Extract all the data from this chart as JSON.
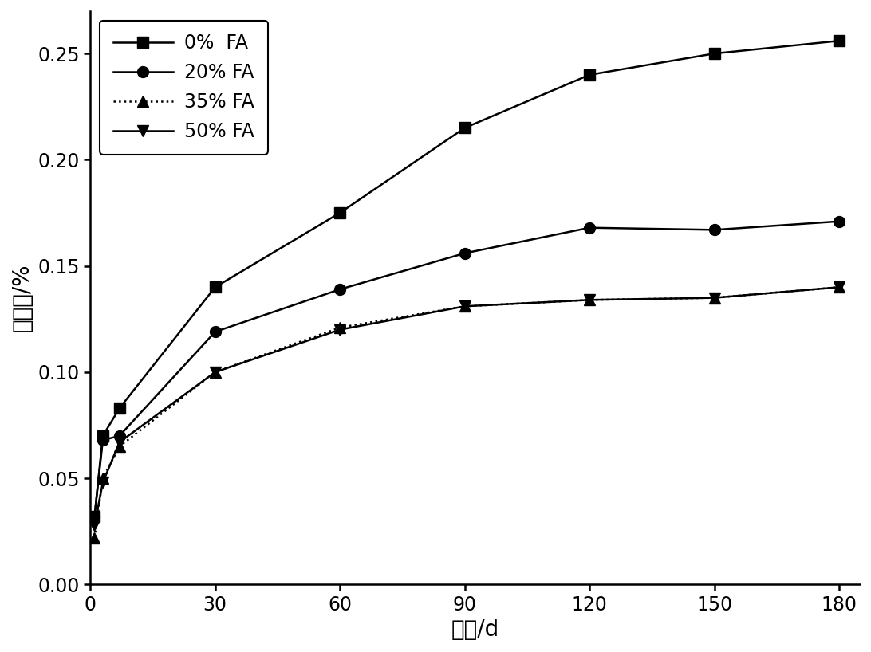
{
  "series": [
    {
      "label": "0%  FA",
      "x": [
        1,
        3,
        7,
        30,
        60,
        90,
        120,
        150,
        180
      ],
      "y": [
        0.032,
        0.07,
        0.083,
        0.14,
        0.175,
        0.215,
        0.24,
        0.25,
        0.256
      ],
      "marker": "s",
      "linestyle": "-",
      "color": "#000000"
    },
    {
      "label": "20% FA",
      "x": [
        1,
        3,
        7,
        30,
        60,
        90,
        120,
        150,
        180
      ],
      "y": [
        0.032,
        0.068,
        0.07,
        0.119,
        0.139,
        0.156,
        0.168,
        0.167,
        0.171
      ],
      "marker": "o",
      "linestyle": "-",
      "color": "#000000"
    },
    {
      "label": "35% FA",
      "x": [
        1,
        3,
        7,
        30,
        60,
        90,
        120,
        150,
        180
      ],
      "y": [
        0.022,
        0.05,
        0.065,
        0.1,
        0.121,
        0.131,
        0.134,
        0.135,
        0.14
      ],
      "marker": "^",
      "linestyle": ":",
      "color": "#000000"
    },
    {
      "label": "50% FA",
      "x": [
        1,
        3,
        7,
        30,
        60,
        90,
        120,
        150,
        180
      ],
      "y": [
        0.028,
        0.048,
        0.067,
        0.1,
        0.12,
        0.131,
        0.134,
        0.135,
        0.14
      ],
      "marker": "v",
      "linestyle": "-",
      "color": "#000000"
    }
  ],
  "xlabel": "龄期/d",
  "ylabel": "膨胀率/%",
  "xlim": [
    0,
    185
  ],
  "ylim": [
    0.0,
    0.27
  ],
  "xticks": [
    0,
    30,
    60,
    90,
    120,
    150,
    180
  ],
  "yticks": [
    0.0,
    0.05,
    0.1,
    0.15,
    0.2,
    0.25
  ],
  "legend_loc": "upper left",
  "fontsize_label": 20,
  "fontsize_tick": 17,
  "fontsize_legend": 17,
  "linewidth": 1.8,
  "markersize": 10,
  "fig_width": 10.92,
  "fig_height": 8.18,
  "dpi": 100
}
